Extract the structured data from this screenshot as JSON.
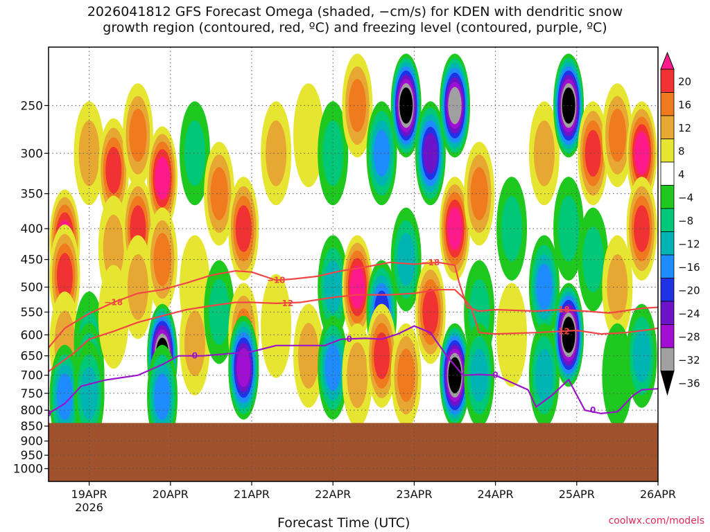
{
  "header": {
    "title_line1": "2026041812 GFS Forecast Omega (shaded, −cm/s) for KDEN with dendritic snow",
    "title_line2": "growth region (contoured, red, ºC) and freezing level (contoured, purple, ºC)"
  },
  "footer": {
    "xlabel": "Forecast Time (UTC)",
    "credit": "coolwx.com/models"
  },
  "chart_data": {
    "type": "heatmap",
    "title": "2026041812 GFS Forecast Omega (shaded, −cm/s) for KDEN with dendritic snow growth region (contoured, red, ºC) and freezing level (contoured, purple, ºC)",
    "xlabel": "Forecast Time (UTC)",
    "ylabel": "",
    "x_ticks": [
      "19APR",
      "20APR",
      "21APR",
      "22APR",
      "23APR",
      "24APR",
      "25APR",
      "26APR"
    ],
    "x_year_label": "2026",
    "y_ticks": [
      250,
      300,
      350,
      400,
      450,
      500,
      550,
      600,
      650,
      700,
      750,
      800,
      850,
      900,
      950,
      1000
    ],
    "y_axis": "pressure-log",
    "ylim": [
      1050,
      200
    ],
    "x_range_days": [
      18.5,
      26.0
    ],
    "grid": "dotted",
    "colorbar": {
      "levels": [
        "20",
        "16",
        "12",
        "8",
        "4",
        "−4",
        "−8",
        "−12",
        "−16",
        "−20",
        "−24",
        "−28",
        "−32",
        "−36"
      ],
      "colors": [
        "#ff1a8c",
        "#f03232",
        "#f07a1e",
        "#e6a832",
        "#e6e632",
        "#ffffff",
        "#1ec81e",
        "#00c878",
        "#00b4b4",
        "#1e8cff",
        "#1e32e6",
        "#6e14c8",
        "#a00fd2",
        "#a0a0a0",
        "#000000"
      ]
    },
    "contours": {
      "dgz_minus12": {
        "label": "−12",
        "color": "#f04646",
        "label_positions_day": [
          21.4,
          24.8
        ],
        "points": [
          [
            18.5,
            690
          ],
          [
            18.8,
            645
          ],
          [
            19.0,
            610
          ],
          [
            19.3,
            592
          ],
          [
            19.6,
            572
          ],
          [
            19.9,
            558
          ],
          [
            20.2,
            545
          ],
          [
            20.5,
            537
          ],
          [
            20.8,
            530
          ],
          [
            21.0,
            530
          ],
          [
            21.3,
            532
          ],
          [
            21.6,
            530
          ],
          [
            22.0,
            520
          ],
          [
            22.3,
            515
          ],
          [
            22.7,
            515
          ],
          [
            23.0,
            512
          ],
          [
            23.3,
            505
          ],
          [
            23.5,
            505
          ],
          [
            23.6,
            520
          ],
          [
            23.7,
            540
          ],
          [
            23.8,
            595
          ],
          [
            24.0,
            598
          ],
          [
            24.5,
            595
          ],
          [
            24.8,
            592
          ],
          [
            25.0,
            590
          ],
          [
            25.3,
            598
          ],
          [
            25.6,
            595
          ],
          [
            25.9,
            588
          ],
          [
            26.0,
            585
          ]
        ]
      },
      "dgz_minus18": {
        "label": "−18",
        "color": "#f04646",
        "label_positions_day": [
          19.3,
          21.3,
          23.2,
          24.8
        ],
        "points": [
          [
            18.5,
            630
          ],
          [
            18.7,
            585
          ],
          [
            19.0,
            553
          ],
          [
            19.3,
            530
          ],
          [
            19.6,
            512
          ],
          [
            19.9,
            505
          ],
          [
            20.2,
            492
          ],
          [
            20.5,
            478
          ],
          [
            20.8,
            470
          ],
          [
            21.0,
            472
          ],
          [
            21.3,
            487
          ],
          [
            21.5,
            485
          ],
          [
            21.8,
            480
          ],
          [
            22.1,
            470
          ],
          [
            22.4,
            463
          ],
          [
            22.7,
            455
          ],
          [
            23.0,
            458
          ],
          [
            23.3,
            455
          ],
          [
            23.5,
            460
          ],
          [
            23.55,
            490
          ],
          [
            23.65,
            540
          ],
          [
            23.8,
            548
          ],
          [
            24.0,
            545
          ],
          [
            24.5,
            548
          ],
          [
            24.8,
            545
          ],
          [
            25.1,
            548
          ],
          [
            25.4,
            552
          ],
          [
            25.8,
            542
          ],
          [
            26.0,
            540
          ]
        ]
      },
      "freezing_level_0": {
        "label": "0",
        "color": "#9a14c8",
        "label_positions_day": [
          18.5,
          20.3,
          22.2,
          24.0,
          25.2
        ],
        "points": [
          [
            18.5,
            810
          ],
          [
            18.7,
            780
          ],
          [
            18.9,
            730
          ],
          [
            19.2,
            713
          ],
          [
            19.6,
            700
          ],
          [
            19.9,
            672
          ],
          [
            20.1,
            650
          ],
          [
            20.4,
            650
          ],
          [
            20.7,
            645
          ],
          [
            21.0,
            640
          ],
          [
            21.3,
            625
          ],
          [
            21.6,
            625
          ],
          [
            21.9,
            625
          ],
          [
            22.1,
            610
          ],
          [
            22.4,
            608
          ],
          [
            22.6,
            610
          ],
          [
            22.8,
            598
          ],
          [
            23.0,
            580
          ],
          [
            23.2,
            595
          ],
          [
            23.4,
            650
          ],
          [
            23.6,
            700
          ],
          [
            23.8,
            698
          ],
          [
            24.0,
            700
          ],
          [
            24.2,
            720
          ],
          [
            24.4,
            740
          ],
          [
            24.5,
            790
          ],
          [
            24.7,
            755
          ],
          [
            24.9,
            712
          ],
          [
            25.1,
            800
          ],
          [
            25.3,
            810
          ],
          [
            25.5,
            805
          ],
          [
            25.7,
            755
          ],
          [
            25.8,
            740
          ],
          [
            26.0,
            737
          ]
        ]
      }
    },
    "shaded_columns": [
      {
        "day": 18.7,
        "values": [
          {
            "p": 420,
            "v": 20
          },
          {
            "p": 480,
            "v": 16
          },
          {
            "p": 620,
            "v": 8
          },
          {
            "p": 760,
            "v": -16
          }
        ]
      },
      {
        "day": 19.0,
        "values": [
          {
            "p": 300,
            "v": 8
          },
          {
            "p": 620,
            "v": -8
          },
          {
            "p": 700,
            "v": -16
          },
          {
            "p": 750,
            "v": -12
          }
        ]
      },
      {
        "day": 19.3,
        "values": [
          {
            "p": 320,
            "v": 16
          },
          {
            "p": 430,
            "v": 8
          },
          {
            "p": 560,
            "v": 4
          }
        ]
      },
      {
        "day": 19.6,
        "values": [
          {
            "p": 280,
            "v": 12
          },
          {
            "p": 400,
            "v": 16
          },
          {
            "p": 500,
            "v": 8
          }
        ]
      },
      {
        "day": 19.9,
        "values": [
          {
            "p": 330,
            "v": 20
          },
          {
            "p": 450,
            "v": 12
          },
          {
            "p": 650,
            "v": -36
          },
          {
            "p": 760,
            "v": -16
          }
        ]
      },
      {
        "day": 20.3,
        "values": [
          {
            "p": 300,
            "v": -8
          },
          {
            "p": 500,
            "v": 4
          },
          {
            "p": 620,
            "v": 8
          }
        ]
      },
      {
        "day": 20.6,
        "values": [
          {
            "p": 350,
            "v": 12
          },
          {
            "p": 550,
            "v": -8
          }
        ]
      },
      {
        "day": 20.9,
        "values": [
          {
            "p": 400,
            "v": 16
          },
          {
            "p": 600,
            "v": 12
          },
          {
            "p": 680,
            "v": -28
          }
        ]
      },
      {
        "day": 21.3,
        "values": [
          {
            "p": 300,
            "v": 8
          },
          {
            "p": 580,
            "v": 4
          }
        ]
      },
      {
        "day": 21.7,
        "values": [
          {
            "p": 280,
            "v": 4
          },
          {
            "p": 650,
            "v": 8
          }
        ]
      },
      {
        "day": 22.0,
        "values": [
          {
            "p": 300,
            "v": -8
          },
          {
            "p": 500,
            "v": -12
          },
          {
            "p": 680,
            "v": -16
          }
        ]
      },
      {
        "day": 22.3,
        "values": [
          {
            "p": 250,
            "v": 12
          },
          {
            "p": 500,
            "v": 20
          },
          {
            "p": 700,
            "v": 8
          }
        ]
      },
      {
        "day": 22.6,
        "values": [
          {
            "p": 300,
            "v": -16
          },
          {
            "p": 550,
            "v": -20
          },
          {
            "p": 650,
            "v": 16
          }
        ]
      },
      {
        "day": 22.9,
        "values": [
          {
            "p": 250,
            "v": -36
          },
          {
            "p": 450,
            "v": -12
          },
          {
            "p": 700,
            "v": 12
          }
        ]
      },
      {
        "day": 23.2,
        "values": [
          {
            "p": 300,
            "v": -24
          },
          {
            "p": 550,
            "v": 16
          }
        ]
      },
      {
        "day": 23.5,
        "values": [
          {
            "p": 250,
            "v": -32
          },
          {
            "p": 400,
            "v": 20
          },
          {
            "p": 700,
            "v": -36
          }
        ]
      },
      {
        "day": 23.8,
        "values": [
          {
            "p": 350,
            "v": 12
          },
          {
            "p": 550,
            "v": -8
          },
          {
            "p": 700,
            "v": -12
          }
        ]
      },
      {
        "day": 24.2,
        "values": [
          {
            "p": 400,
            "v": -8
          },
          {
            "p": 600,
            "v": 4
          }
        ]
      },
      {
        "day": 24.6,
        "values": [
          {
            "p": 300,
            "v": 8
          },
          {
            "p": 500,
            "v": -16
          },
          {
            "p": 700,
            "v": -12
          }
        ]
      },
      {
        "day": 24.9,
        "values": [
          {
            "p": 250,
            "v": -36
          },
          {
            "p": 400,
            "v": -8
          },
          {
            "p": 600,
            "v": -36
          }
        ]
      },
      {
        "day": 25.2,
        "values": [
          {
            "p": 300,
            "v": 16
          },
          {
            "p": 450,
            "v": -8
          }
        ]
      },
      {
        "day": 25.5,
        "values": [
          {
            "p": 280,
            "v": 12
          },
          {
            "p": 500,
            "v": 8
          },
          {
            "p": 700,
            "v": -4
          }
        ]
      },
      {
        "day": 25.8,
        "values": [
          {
            "p": 300,
            "v": 20
          },
          {
            "p": 400,
            "v": 16
          },
          {
            "p": 650,
            "v": -12
          }
        ]
      }
    ],
    "terrain": {
      "color": "#a0522d",
      "top_pressure": 840
    }
  }
}
